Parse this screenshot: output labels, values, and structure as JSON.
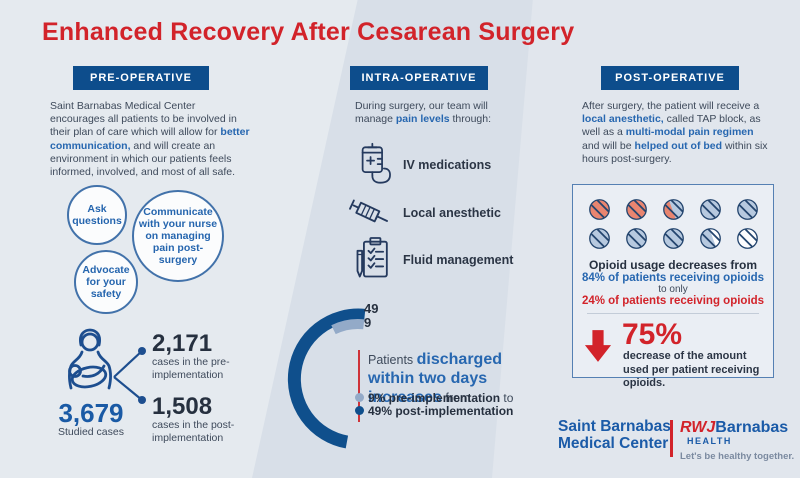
{
  "title": "Enhanced Recovery After Cesarean Surgery",
  "colors": {
    "title_red": "#d2232a",
    "header_bar_blue": "#0d4d8c",
    "accent_blue": "#2767b0",
    "dark_text": "#3e4a5b",
    "donut_dark": "#0f4f8c",
    "donut_light": "#93aac8",
    "pill_red": "#e98570",
    "pill_blue": "#b7c9df"
  },
  "pre": {
    "header": "PRE-OPERATIVE",
    "paragraph": [
      {
        "t": "Saint Barnabas Medical Center encourages all patients to be involved in their plan of care which will allow for "
      },
      {
        "t": "better communication,",
        "c": "accent"
      },
      {
        "t": " and will create an environment in which our patients feels informed, involved, and most of all safe."
      }
    ],
    "circles": [
      {
        "label": "Ask questions"
      },
      {
        "label": "Communicate with your nurse on managing pain post-surgery"
      },
      {
        "label": "Advocate for your safety"
      }
    ],
    "stats": {
      "total_value": "3,679",
      "total_label": "Studied cases",
      "pre_value": "2,171",
      "pre_label": "cases in the pre-implementation",
      "post_value": "1,508",
      "post_label": "cases in the post-implementation"
    }
  },
  "intra": {
    "header": "INTRA-OPERATIVE",
    "intro": [
      {
        "t": "During surgery, our team will manage "
      },
      {
        "t": "pain levels",
        "c": "accent"
      },
      {
        "t": " through:"
      }
    ],
    "items": [
      {
        "icon": "iv-bag-icon",
        "label": "IV medications"
      },
      {
        "icon": "syringe-icon",
        "label": "Local anesthetic"
      },
      {
        "icon": "clipboard-icon",
        "label": "Fluid management"
      }
    ],
    "donut": {
      "label_post": "49",
      "label_pre": "9",
      "text": [
        {
          "t": "Patients ",
          "c": "plain"
        },
        {
          "t": "discharged within two days increases",
          "c": "accent-big"
        },
        {
          "t": " from",
          "c": "plain"
        }
      ],
      "legend": [
        {
          "segments": [
            {
              "t": "9% pre-implementation",
              "c": "bold"
            },
            {
              "t": " to"
            }
          ]
        },
        {
          "segments": [
            {
              "t": "49% post-implementation",
              "c": "bold"
            }
          ]
        }
      ]
    }
  },
  "post": {
    "header": "POST-OPERATIVE",
    "paragraph": [
      {
        "t": "After surgery, the patient will receive a "
      },
      {
        "t": "local anesthetic,",
        "c": "accent"
      },
      {
        "t": " called TAP block, as well as a "
      },
      {
        "t": "multi-modal pain regimen",
        "c": "accent"
      },
      {
        "t": " and will be "
      },
      {
        "t": "helped out of bed",
        "c": "accent"
      },
      {
        "t": " within six hours post-surgery."
      }
    ],
    "opioid_box": {
      "pills": [
        {
          "a": "#e98570",
          "f": 1
        },
        {
          "a": "#e98570",
          "f": 1
        },
        {
          "a": "#e98570",
          "b": "#b7c9df",
          "f": 0.45
        },
        {
          "a": "#b7c9df",
          "f": 1
        },
        {
          "a": "#b7c9df",
          "f": 1
        },
        {
          "a": "#b7c9df",
          "f": 1
        },
        {
          "a": "#b7c9df",
          "f": 1
        },
        {
          "a": "#b7c9df",
          "f": 1
        },
        {
          "a": "#b7c9df",
          "b": "#fdfdfe",
          "f": 0.6
        },
        {
          "a": "#fdfdfe",
          "f": 1
        }
      ],
      "line1": "Opioid usage decreases from",
      "line2": "84% of patients receiving opioids",
      "line3": "to only",
      "line4": "24% of patients receiving opioids",
      "pct": "75%",
      "pct_note": "decrease of the amount used per patient receiving opioids."
    }
  },
  "footer": {
    "hospital_line1": "Saint Barnabas",
    "hospital_line2": "Medical Center",
    "brand_red": "RWJ",
    "brand_blue": "Barnabas",
    "brand_sub": "HEALTH",
    "tagline": "Let's be healthy together."
  },
  "chart_data": [
    {
      "type": "pie",
      "title": "Patients discharged within two days",
      "series": [
        {
          "name": "pre-implementation",
          "value": 9
        },
        {
          "name": "post-implementation",
          "value": 49
        }
      ],
      "unit": "%",
      "style": "open donut arcs, dark blue = 49%, light blue = 9%"
    },
    {
      "type": "table",
      "title": "Studied cases",
      "rows": [
        [
          "Total studied cases",
          "3,679"
        ],
        [
          "Cases in the pre-implementation",
          "2,171"
        ],
        [
          "Cases in the post-implementation",
          "1,508"
        ]
      ]
    },
    {
      "type": "table",
      "title": "Opioid usage (pictogram of 10 pills)",
      "rows": [
        [
          "Patients receiving opioids before",
          "84%"
        ],
        [
          "Patients receiving opioids after",
          "24%"
        ],
        [
          "Decrease of amount used per patient receiving opioids",
          "75%"
        ]
      ]
    }
  ]
}
